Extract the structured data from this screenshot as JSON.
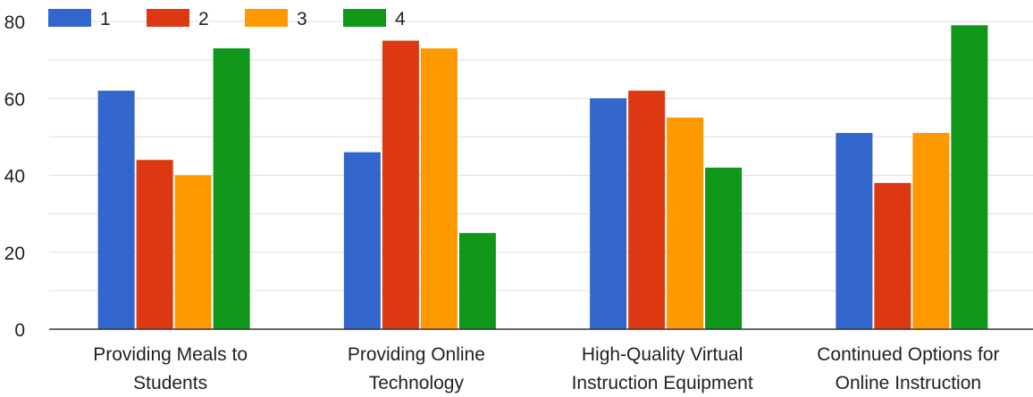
{
  "colors": {
    "series": [
      "#3366cc",
      "#dc3912",
      "#ff9900",
      "#109618"
    ],
    "grid": "#e0e0e0",
    "axis": "#333333",
    "text": "#222222"
  },
  "chart_data": {
    "type": "bar",
    "title": "",
    "xlabel": "",
    "ylabel": "",
    "ylim": [
      0,
      80
    ],
    "yticks": [
      0,
      20,
      40,
      60,
      80
    ],
    "grid": true,
    "legend_position": "top-left",
    "categories": [
      [
        "Providing Meals to",
        "Students"
      ],
      [
        "Providing Online",
        "Technology"
      ],
      [
        "High-Quality Virtual",
        "Instruction Equipment"
      ],
      [
        "Continued Options for",
        "Online Instruction"
      ]
    ],
    "series": [
      {
        "name": "1",
        "values": [
          62,
          46,
          60,
          51
        ]
      },
      {
        "name": "2",
        "values": [
          44,
          75,
          62,
          38
        ]
      },
      {
        "name": "3",
        "values": [
          40,
          73,
          55,
          51
        ]
      },
      {
        "name": "4",
        "values": [
          73,
          25,
          42,
          79
        ]
      }
    ]
  }
}
